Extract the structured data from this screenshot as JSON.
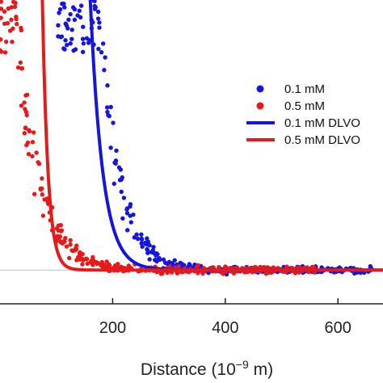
{
  "chart_data": {
    "type": "scatter",
    "xlabel": "Distance (10",
    "xlabel_exp": "−9",
    "xlabel_unit": " m)",
    "xlim": [
      0,
      680
    ],
    "x_ticks": [
      200,
      400,
      600
    ],
    "x_tick_labels": [
      "200",
      "400",
      "600"
    ],
    "ylim": [
      -0.25,
      2.0
    ],
    "baseline_y": 0,
    "grid": false,
    "legend_position": "right",
    "series": [
      {
        "name": "0.1 mM",
        "kind": "points",
        "color": "#1515e0",
        "decay_length": 34,
        "onset": 150,
        "amplitude": 4.2,
        "noise": 0.28,
        "count": 330,
        "x_range": [
          100,
          660
        ]
      },
      {
        "name": "0.5 mM",
        "kind": "points",
        "color": "#e51a1a",
        "decay_length": 38,
        "onset": 0,
        "amplitude": 4.0,
        "noise": 0.32,
        "count": 360,
        "x_range": [
          0,
          560
        ]
      },
      {
        "name": "0.1 mM DLVO",
        "kind": "line",
        "color": "#1515e0",
        "decay_length": 22,
        "onset": 162,
        "amplitude": 1.85
      },
      {
        "name": "0.5 mM DLVO",
        "kind": "line",
        "color": "#e51a1a",
        "decay_length": 10,
        "onset": 76,
        "amplitude": 1.85
      }
    ]
  }
}
